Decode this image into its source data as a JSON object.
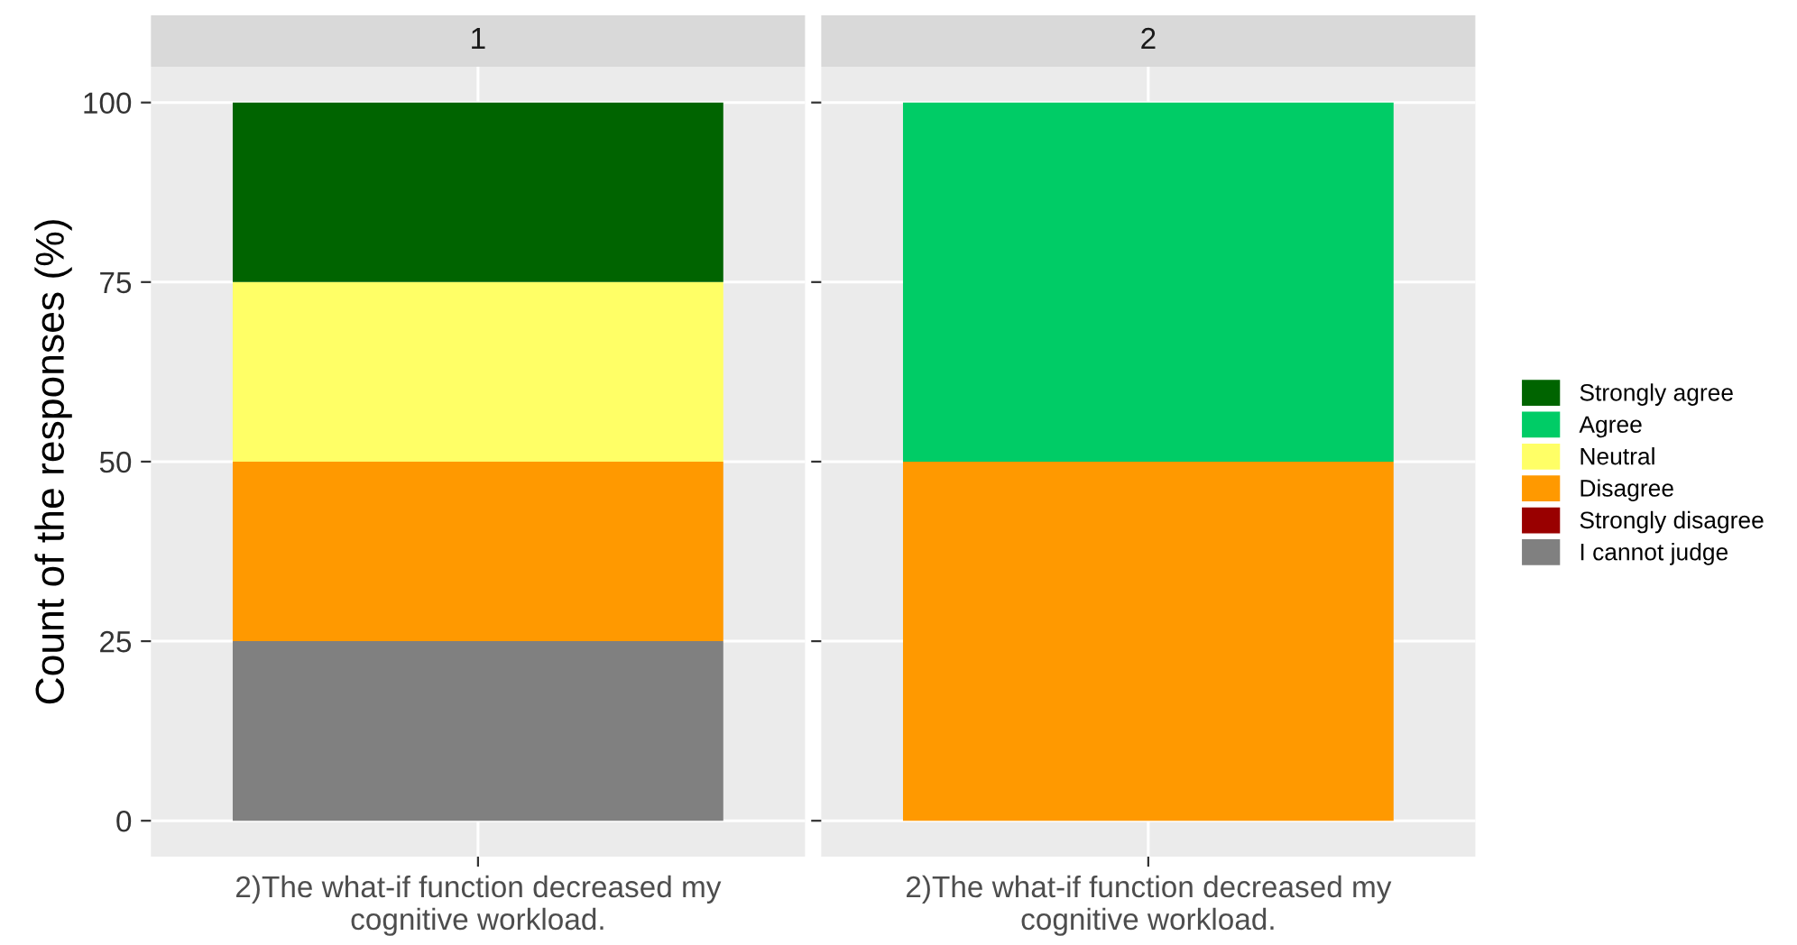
{
  "chart_data": [
    {
      "type": "bar",
      "title": "1",
      "ylabel": "Count of the responses (%)",
      "categories": [
        "2)The what-if function decreased my\ncognitive workload."
      ],
      "stacked": true,
      "ylim": [
        -5,
        105
      ],
      "yticks": [
        0,
        25,
        50,
        75,
        100
      ],
      "grid": true,
      "legend": "right",
      "series": [
        {
          "name": "I cannot judge",
          "color": "#808080",
          "values": [
            25
          ]
        },
        {
          "name": "Strongly disagree",
          "color": "#990000",
          "values": [
            0
          ]
        },
        {
          "name": "Disagree",
          "color": "#ff9900",
          "values": [
            25
          ]
        },
        {
          "name": "Neutral",
          "color": "#ffff66",
          "values": [
            25
          ]
        },
        {
          "name": "Agree",
          "color": "#00cc66",
          "values": [
            0
          ]
        },
        {
          "name": "Strongly agree",
          "color": "#006400",
          "values": [
            25
          ]
        }
      ]
    },
    {
      "type": "bar",
      "title": "2",
      "categories": [
        "2)The what-if function decreased my\ncognitive workload."
      ],
      "stacked": true,
      "ylim": [
        -5,
        105
      ],
      "yticks": [
        0,
        25,
        50,
        75,
        100
      ],
      "grid": true,
      "tick_labels": "x",
      "series": [
        {
          "color": "#808080",
          "values": [
            0
          ]
        },
        {
          "color": "#990000",
          "values": [
            0
          ]
        },
        {
          "color": "#ff9900",
          "values": [
            50
          ]
        },
        {
          "color": "#ffff66",
          "values": [
            0
          ]
        },
        {
          "color": "#00cc66",
          "values": [
            50
          ]
        },
        {
          "color": "#006400",
          "values": [
            0
          ]
        }
      ]
    }
  ]
}
